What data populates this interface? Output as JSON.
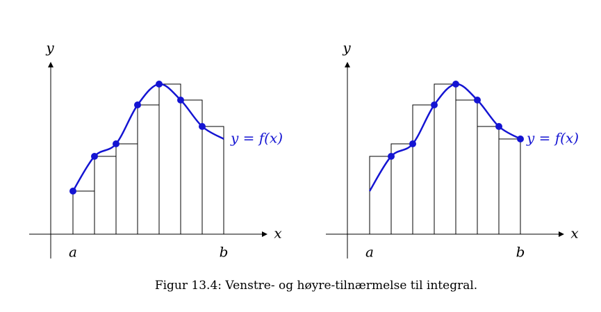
{
  "panels": [
    {
      "y_label": "y",
      "x_label": "x",
      "a_label": "a",
      "b_label": "b",
      "curve_label": "y = f(x)"
    },
    {
      "y_label": "y",
      "x_label": "x",
      "a_label": "a",
      "b_label": "b",
      "curve_label": "y = f(x)"
    }
  ],
  "caption": "Figur 13.4: Venstre- og høyre-tilnærmelse til integral."
}
